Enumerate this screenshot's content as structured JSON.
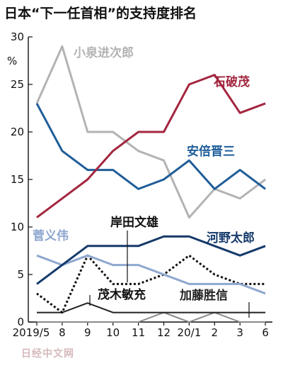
{
  "chart_data": {
    "type": "line",
    "title": "日本“下一任首相”的支持度排名",
    "y_unit": "%",
    "ylim": [
      0,
      30
    ],
    "yticks": [
      0,
      5,
      10,
      15,
      20,
      25,
      30
    ],
    "categories": [
      "2019/5",
      "8",
      "9",
      "10",
      "11",
      "12",
      "20/1",
      "2",
      "3",
      "6"
    ],
    "grid": false,
    "series": [
      {
        "name": "石破茂",
        "color": "#a3263f",
        "style": "solid",
        "values": [
          11,
          13,
          15,
          18,
          20,
          20,
          25,
          26,
          22,
          23
        ]
      },
      {
        "name": "小泉进次郎",
        "color": "#b3b3b3",
        "style": "solid",
        "values": [
          23,
          29,
          20,
          20,
          18,
          17,
          11,
          14,
          13,
          15
        ]
      },
      {
        "name": "安倍晋三",
        "color": "#1f5d99",
        "style": "solid",
        "values": [
          23,
          18,
          16,
          16,
          14,
          15,
          17,
          14,
          16,
          14
        ]
      },
      {
        "name": "河野太郎",
        "color": "#163a6a",
        "style": "solid",
        "values": [
          4,
          6,
          8,
          8,
          8,
          9,
          9,
          8,
          7,
          8
        ]
      },
      {
        "name": "菅义伟",
        "color": "#8ea7cf",
        "style": "solid",
        "values": [
          7,
          6,
          7,
          6,
          6,
          5,
          4,
          4,
          4,
          3
        ]
      },
      {
        "name": "岸田文雄",
        "color": "#111111",
        "style": "dotted",
        "values": [
          3,
          1,
          7,
          4,
          4,
          5,
          7,
          5,
          4,
          4
        ]
      },
      {
        "name": "茂木敏充",
        "color": "#222222",
        "style": "solid",
        "values": [
          1,
          1,
          2,
          1,
          1,
          1,
          1,
          1,
          1,
          1
        ]
      },
      {
        "name": "加藤胜信",
        "color": "#8a8a8a",
        "style": "solid",
        "values": [
          0,
          0,
          0,
          0,
          0,
          1,
          0,
          1,
          0,
          0
        ]
      }
    ]
  },
  "watermark": "日经中文网"
}
